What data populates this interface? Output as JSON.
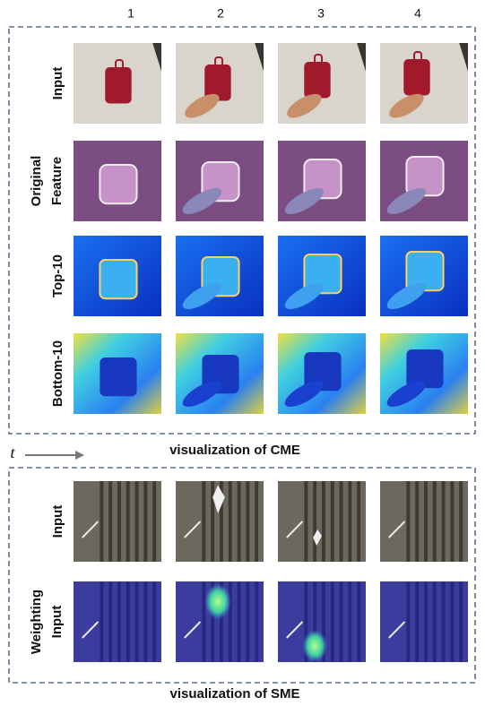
{
  "column_labels": [
    "1",
    "2",
    "3",
    "4"
  ],
  "time_label": "t",
  "sections": [
    {
      "rows": [
        {
          "label_lines": [
            "Input"
          ]
        },
        {
          "label_lines": [
            "Original",
            "Feature"
          ]
        },
        {
          "label_lines": [
            "Top-10"
          ]
        },
        {
          "label_lines": [
            "Bottom-10"
          ]
        }
      ],
      "caption": "visualization of CME"
    },
    {
      "rows": [
        {
          "label_lines": [
            "Input"
          ]
        },
        {
          "label_lines": [
            "Weighting",
            "Input"
          ]
        }
      ],
      "caption": "visualization of SME"
    }
  ]
}
